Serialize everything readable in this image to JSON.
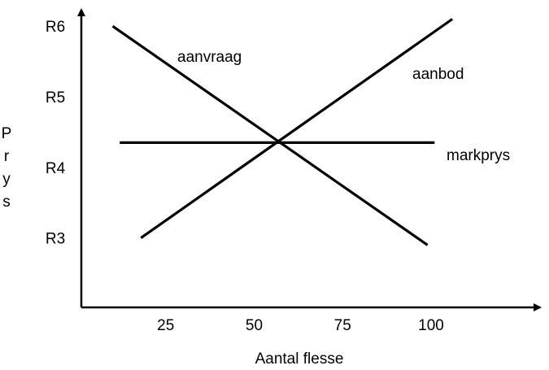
{
  "chart_data": {
    "type": "line",
    "xlabel": "Aantal flesse",
    "ylabel": [
      "P",
      "r",
      "y",
      "s"
    ],
    "x_ticks": [
      {
        "value": 25,
        "label": "25"
      },
      {
        "value": 50,
        "label": "50"
      },
      {
        "value": 75,
        "label": "75"
      },
      {
        "value": 100,
        "label": "100"
      }
    ],
    "y_ticks": [
      {
        "value": 3,
        "label": "R3"
      },
      {
        "value": 4,
        "label": "R4"
      },
      {
        "value": 5,
        "label": "R5"
      },
      {
        "value": 6,
        "label": "R6"
      }
    ],
    "series": [
      {
        "name": "aanvraag",
        "x": [
          10,
          99
        ],
        "y": [
          6.0,
          2.9
        ]
      },
      {
        "name": "aanbod",
        "x": [
          18,
          106
        ],
        "y": [
          3.0,
          6.1
        ]
      },
      {
        "name": "markprys",
        "x": [
          12,
          101
        ],
        "y": [
          4.35,
          4.35
        ]
      }
    ]
  }
}
